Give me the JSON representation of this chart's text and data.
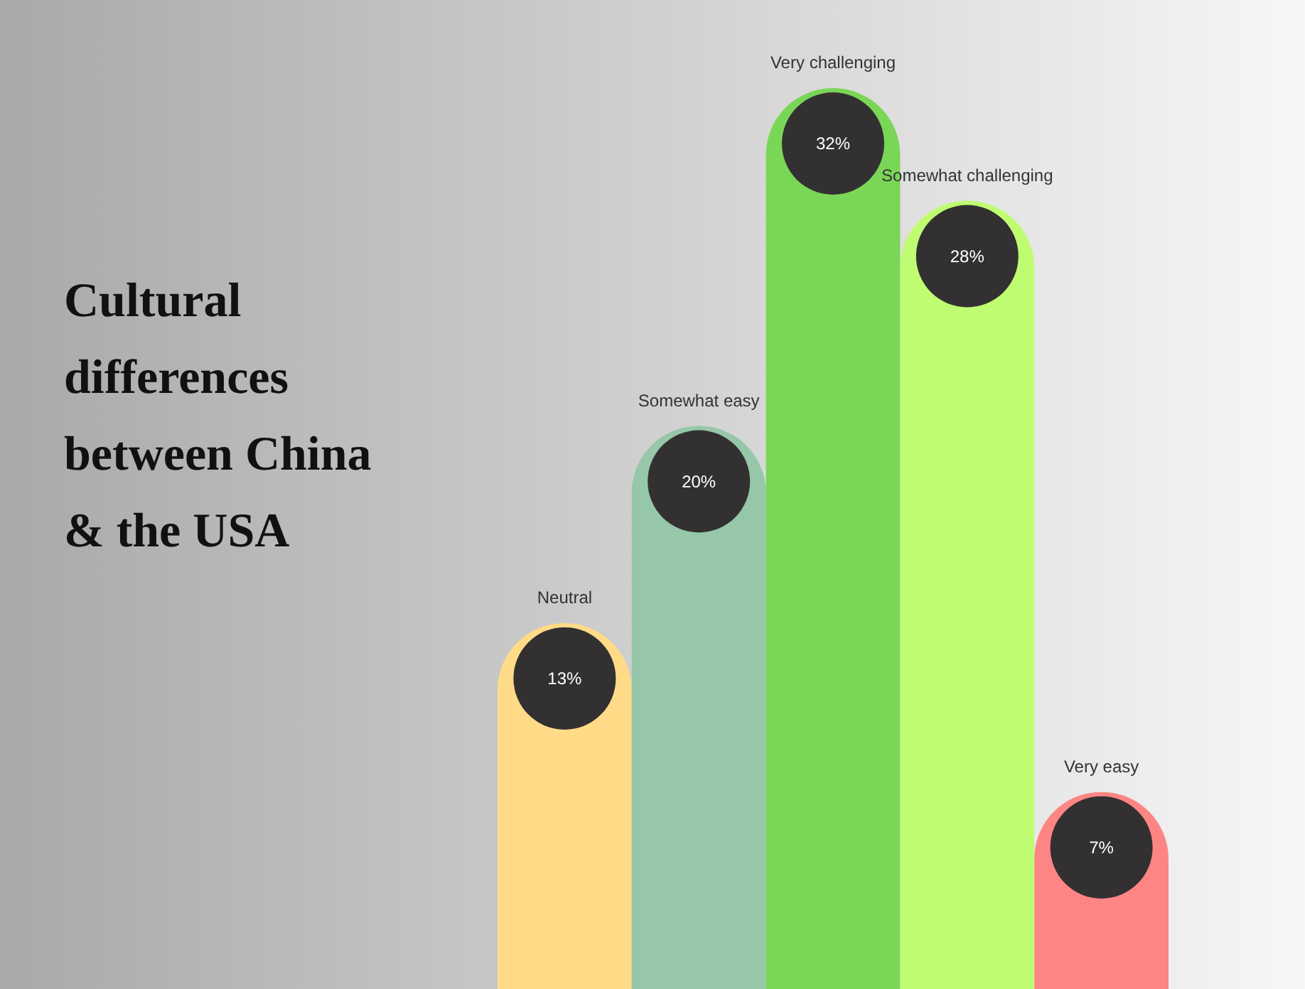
{
  "chart_data": {
    "type": "bar",
    "title": "Cultural differences between China & the USA",
    "categories": [
      "Neutral",
      "Somewhat easy",
      "Very challenging",
      "Somewhat challenging",
      "Very easy"
    ],
    "values": [
      13,
      20,
      32,
      28,
      7
    ],
    "value_labels": [
      "13%",
      "20%",
      "32%",
      "28%",
      "7%"
    ],
    "colors": [
      "#ffdb88",
      "#96c7a8",
      "#7ad657",
      "#c0fc72",
      "#fd8583"
    ],
    "ylim": [
      0,
      32
    ],
    "grid": false
  }
}
